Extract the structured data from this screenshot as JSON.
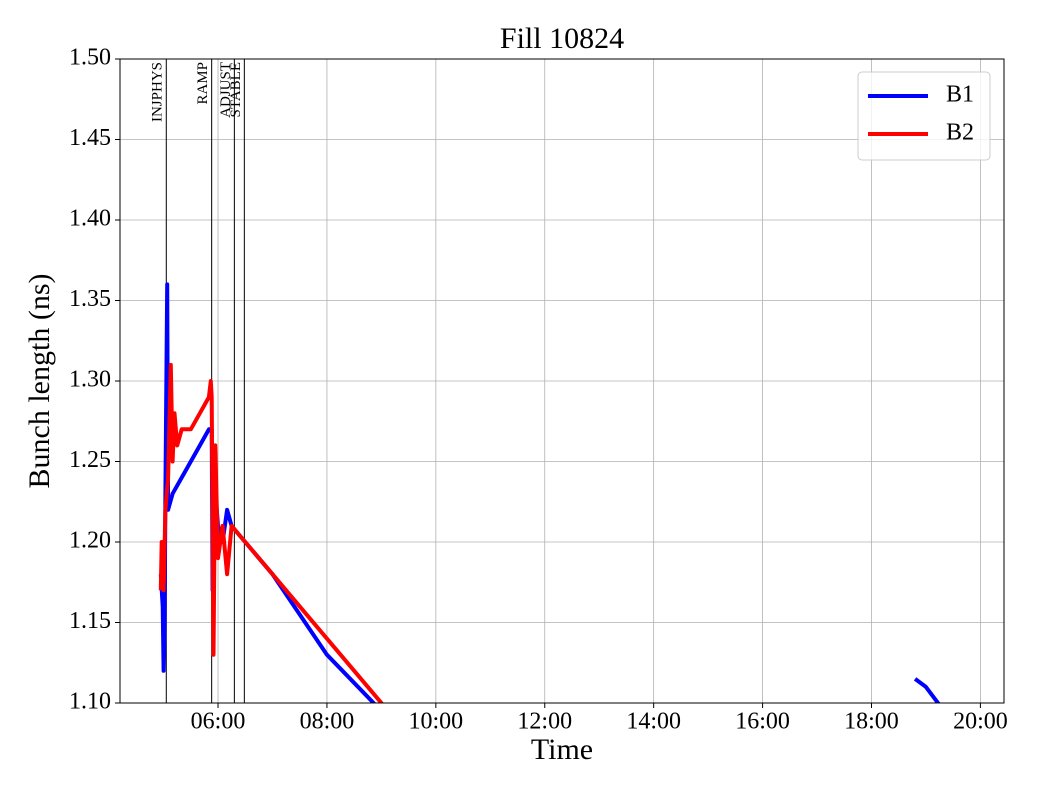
{
  "chart_data": {
    "type": "line",
    "title": "Fill 10824",
    "x_label": "Time",
    "y_label": "Bunch length (ns)",
    "xlim": [
      "04:12",
      "20:26"
    ],
    "xticks": [
      "06:00",
      "08:00",
      "10:00",
      "12:00",
      "14:00",
      "16:00",
      "18:00",
      "20:00"
    ],
    "ylim": [
      1.1,
      1.5
    ],
    "yticks": [
      {
        "value": 1.1,
        "label": "1.10"
      },
      1.15,
      {
        "value": 1.2,
        "label": "1.20"
      },
      1.25,
      {
        "value": 1.3,
        "label": "1.30"
      },
      1.35,
      {
        "value": 1.4,
        "label": "1.40"
      },
      1.45,
      {
        "value": 1.5,
        "label": "1.50"
      }
    ],
    "grid": true,
    "legend": "upper right",
    "markers": [
      {
        "label": "INJPHYS",
        "x": "05:03"
      },
      {
        "label": "RAMP",
        "x": "05:53"
      },
      {
        "label": "ADJUST",
        "x": "06:18"
      },
      {
        "label": "STABLE",
        "x": "06:29"
      }
    ],
    "series": [
      {
        "name": "B1",
        "color": "#0000ff",
        "x": [
          "04:57",
          "04:59",
          "05:00",
          "05:01",
          "05:02",
          "05:04",
          "05:05",
          "05:10",
          "05:20",
          "05:30",
          "05:40",
          "05:50",
          "05:53",
          "05:54",
          "05:56",
          "06:00",
          "06:05",
          "06:10",
          "06:15",
          "06:30",
          "07:00",
          "08:00",
          "09:00",
          "18:47",
          "18:48",
          "19:00",
          "19:20"
        ],
        "values": [
          1.18,
          1.16,
          1.12,
          1.14,
          1.23,
          1.36,
          1.22,
          1.23,
          1.24,
          1.25,
          1.26,
          1.27,
          1.27,
          1.17,
          1.24,
          1.21,
          1.2,
          1.22,
          1.21,
          1.2,
          1.18,
          1.13,
          1.095,
          null,
          1.115,
          1.11,
          1.095
        ]
      },
      {
        "name": "B2",
        "color": "#ff0000",
        "x": [
          "04:57",
          "04:58",
          "05:00",
          "05:02",
          "05:05",
          "05:08",
          "05:10",
          "05:12",
          "05:15",
          "05:20",
          "05:30",
          "05:40",
          "05:50",
          "05:52",
          "05:53",
          "05:55",
          "05:57",
          "06:00",
          "06:05",
          "06:10",
          "06:15",
          "06:30",
          "07:00",
          "08:00",
          "09:00",
          "09:05"
        ],
        "values": [
          1.17,
          1.2,
          1.17,
          1.22,
          1.24,
          1.31,
          1.25,
          1.28,
          1.26,
          1.27,
          1.27,
          1.28,
          1.29,
          1.3,
          1.29,
          1.13,
          1.26,
          1.19,
          1.21,
          1.18,
          1.21,
          1.2,
          1.18,
          1.14,
          1.1,
          1.095
        ]
      }
    ]
  }
}
